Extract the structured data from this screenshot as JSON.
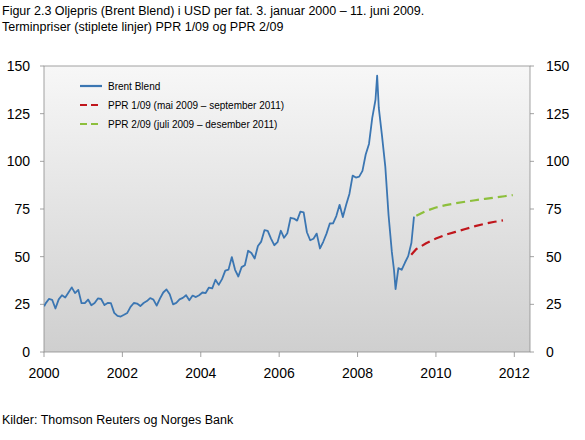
{
  "chart_data": {
    "type": "line",
    "title": "Figur 2.3 Oljepris (Brent Blend) i USD per fat. 3. januar 2000 – 11. juni 2009.",
    "subtitle": "Terminpriser (stiplete linjer) PPR 1/09 og PPR 2/09",
    "source": "Kilder: Thomson Reuters og Norges Bank",
    "xlim": [
      2000,
      2012.4
    ],
    "xticks": [
      2000,
      2002,
      2004,
      2006,
      2008,
      2010,
      2012
    ],
    "ylim": [
      0,
      150
    ],
    "yticks": [
      0,
      25,
      50,
      75,
      100,
      125,
      150
    ],
    "y2lim": [
      0,
      150
    ],
    "y2ticks": [
      0,
      25,
      50,
      75,
      100,
      125,
      150
    ],
    "grid": false,
    "legend": "upper left",
    "series": [
      {
        "name": "Brent Blend",
        "color": "#3b76b2",
        "line_style": "solid",
        "x": [
          2000.005,
          2000.042,
          2000.125,
          2000.208,
          2000.292,
          2000.375,
          2000.458,
          2000.542,
          2000.625,
          2000.708,
          2000.792,
          2000.875,
          2000.958,
          2001.042,
          2001.125,
          2001.208,
          2001.292,
          2001.375,
          2001.458,
          2001.542,
          2001.625,
          2001.708,
          2001.792,
          2001.875,
          2001.958,
          2002.042,
          2002.125,
          2002.208,
          2002.292,
          2002.375,
          2002.458,
          2002.542,
          2002.625,
          2002.708,
          2002.792,
          2002.875,
          2002.958,
          2003.042,
          2003.125,
          2003.208,
          2003.292,
          2003.375,
          2003.458,
          2003.542,
          2003.625,
          2003.708,
          2003.792,
          2003.875,
          2003.958,
          2004.042,
          2004.125,
          2004.208,
          2004.292,
          2004.375,
          2004.458,
          2004.542,
          2004.625,
          2004.708,
          2004.792,
          2004.875,
          2004.958,
          2005.042,
          2005.125,
          2005.208,
          2005.292,
          2005.375,
          2005.458,
          2005.542,
          2005.625,
          2005.708,
          2005.792,
          2005.875,
          2005.958,
          2006.042,
          2006.125,
          2006.208,
          2006.292,
          2006.375,
          2006.458,
          2006.542,
          2006.625,
          2006.708,
          2006.792,
          2006.875,
          2006.958,
          2007.042,
          2007.125,
          2007.208,
          2007.292,
          2007.375,
          2007.458,
          2007.542,
          2007.625,
          2007.708,
          2007.792,
          2007.875,
          2007.958,
          2008.042,
          2008.125,
          2008.208,
          2008.292,
          2008.375,
          2008.458,
          2008.5,
          2008.542,
          2008.625,
          2008.708,
          2008.792,
          2008.875,
          2008.93,
          2008.97,
          2009.042,
          2009.125,
          2009.208,
          2009.292,
          2009.375,
          2009.44
        ],
        "values": [
          24,
          25.5,
          27.8,
          27.4,
          22.8,
          27.6,
          29.8,
          28.6,
          31.2,
          33.9,
          30.9,
          32.6,
          25.6,
          25.6,
          27.5,
          24.5,
          25.7,
          28.1,
          27.8,
          24.6,
          25.7,
          25.6,
          20.5,
          18.9,
          18.6,
          19.5,
          20.5,
          23.7,
          25.7,
          25.4,
          24.1,
          25.7,
          26.7,
          28.3,
          27.5,
          24.3,
          28.0,
          31.2,
          32.8,
          30.3,
          25.0,
          25.8,
          27.6,
          28.4,
          29.8,
          27.1,
          29.6,
          28.8,
          29.8,
          31.2,
          30.9,
          33.8,
          33.4,
          37.9,
          35.2,
          38.2,
          42.7,
          43.2,
          49.8,
          43.1,
          39.6,
          44.5,
          45.5,
          53.1,
          51.9,
          49.0,
          55.6,
          57.9,
          63.9,
          63.5,
          59.5,
          56.0,
          57.6,
          63.6,
          59.9,
          62.3,
          70.4,
          70.0,
          68.9,
          73.6,
          73.2,
          62.8,
          58.6,
          59.4,
          62.1,
          54.3,
          57.8,
          62.1,
          67.4,
          67.5,
          71.3,
          77.2,
          70.8,
          77.1,
          82.9,
          92.5,
          91.5,
          92.0,
          95.0,
          103.6,
          109.1,
          122.8,
          132.3,
          145,
          128,
          113.2,
          97.2,
          71.6,
          52.5,
          43,
          33,
          44,
          43.1,
          46.8,
          50.3,
          57.3,
          71
        ]
      },
      {
        "name": "PPR 1/09 (mai 2009 – september 2011)",
        "color": "#c0161c",
        "line_style": "dashed",
        "x": [
          2009.37,
          2009.5,
          2009.75,
          2010,
          2010.25,
          2010.5,
          2010.75,
          2011,
          2011.25,
          2011.5,
          2011.71
        ],
        "values": [
          51,
          54,
          57,
          59.5,
          61.5,
          63,
          64.5,
          66,
          67.3,
          68.3,
          69
        ]
      },
      {
        "name": "PPR 2/09 (juli 2009 – desember 2011)",
        "color": "#8dbf3c",
        "line_style": "dashed",
        "x": [
          2009.5,
          2009.75,
          2010,
          2010.25,
          2010.5,
          2010.75,
          2011,
          2011.25,
          2011.5,
          2011.75,
          2011.96
        ],
        "values": [
          71.5,
          74,
          75.8,
          77,
          78,
          78.8,
          79.6,
          80.3,
          81,
          81.7,
          82.3
        ]
      }
    ]
  }
}
